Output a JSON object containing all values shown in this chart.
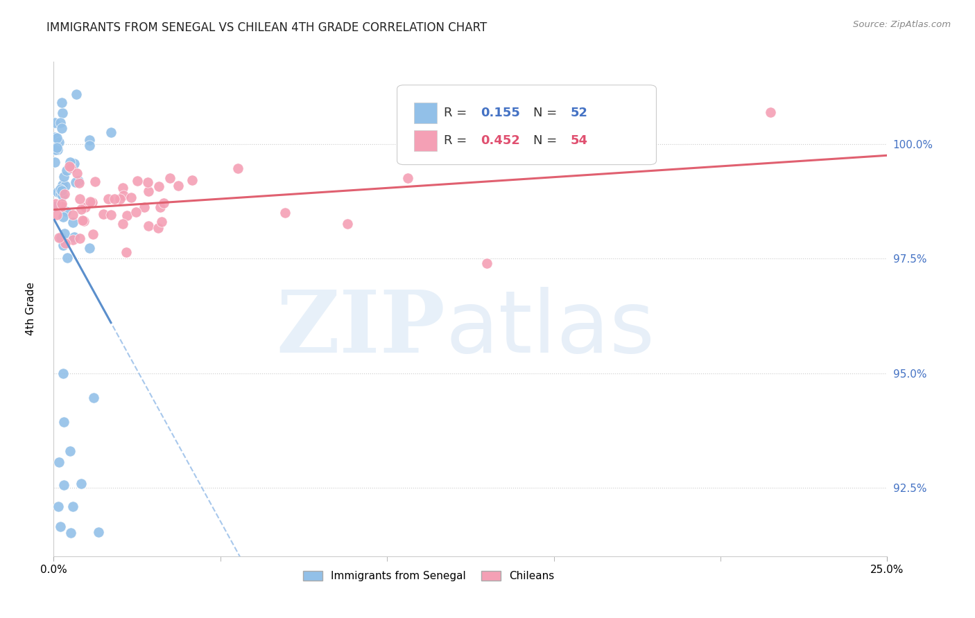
{
  "title": "IMMIGRANTS FROM SENEGAL VS CHILEAN 4TH GRADE CORRELATION CHART",
  "source": "Source: ZipAtlas.com",
  "legend_label1": "Immigrants from Senegal",
  "legend_label2": "Chileans",
  "blue_color": "#92C0E8",
  "pink_color": "#F4A0B5",
  "trend_blue_solid": "#5B8FCC",
  "trend_blue_dash": "#A8C8EC",
  "trend_pink": "#E06070",
  "x_min": 0.0,
  "x_max": 25.0,
  "y_min": 91.0,
  "y_max": 101.8,
  "yticks": [
    92.5,
    95.0,
    97.5,
    100.0
  ],
  "ytick_labels": [
    "92.5%",
    "95.0%",
    "97.5%",
    "100.0%"
  ],
  "watermark_zip": "ZIP",
  "watermark_atlas": "atlas",
  "R1": "0.155",
  "N1": "52",
  "R2": "0.452",
  "N2": "54"
}
